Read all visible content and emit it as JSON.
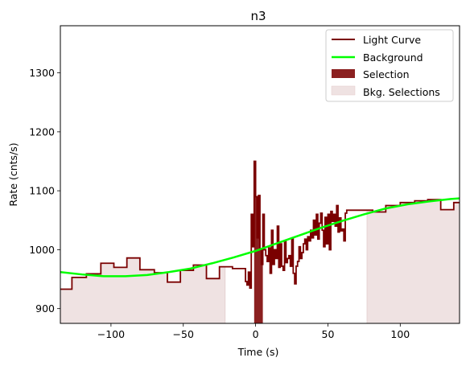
{
  "chart_data": {
    "type": "line",
    "title": "n3",
    "xlabel": "Time (s)",
    "ylabel": "Rate (cnts/s)",
    "xlim": [
      -135,
      141
    ],
    "ylim": [
      875,
      1380
    ],
    "xticks": [
      -100,
      -50,
      0,
      50,
      100
    ],
    "yticks": [
      900,
      1000,
      1100,
      1200,
      1300
    ],
    "legend": {
      "position": "top-right",
      "entries": [
        "Light Curve",
        "Background",
        "Selection",
        "Bkg. Selections"
      ]
    },
    "colors": {
      "light_curve": "#7a0000",
      "background": "#00ff00",
      "selection": "#8b2020",
      "bkg_selection": "#efe2e2"
    },
    "bkg_selections": [
      [
        -135,
        -21
      ],
      [
        77,
        141
      ]
    ],
    "selection": [
      -1,
      5
    ],
    "light_curve_steps": [
      [
        -135,
        933
      ],
      [
        -127,
        953
      ],
      [
        -117,
        959
      ],
      [
        -107,
        977
      ],
      [
        -98,
        970
      ],
      [
        -89,
        986
      ],
      [
        -80,
        966
      ],
      [
        -70,
        961
      ],
      [
        -61,
        945
      ],
      [
        -52,
        965
      ],
      [
        -43,
        974
      ],
      [
        -34,
        951
      ],
      [
        -25,
        971
      ],
      [
        -16,
        968
      ],
      [
        -8,
        968
      ],
      [
        -7,
        946
      ],
      [
        -6,
        940
      ],
      [
        -5,
        962
      ],
      [
        -4,
        935
      ],
      [
        -3,
        1060
      ],
      [
        -2,
        1005
      ],
      [
        -1,
        1150
      ],
      [
        0,
        1090
      ],
      [
        1,
        1020
      ],
      [
        2,
        1092
      ],
      [
        3,
        1000
      ],
      [
        4,
        975
      ],
      [
        5,
        1060
      ],
      [
        6,
        1000
      ],
      [
        7,
        990
      ],
      [
        8,
        980
      ],
      [
        9,
        1003
      ],
      [
        10,
        960
      ],
      [
        11,
        1033
      ],
      [
        12,
        975
      ],
      [
        13,
        1000
      ],
      [
        14,
        985
      ],
      [
        15,
        1040
      ],
      [
        16,
        970
      ],
      [
        17,
        1010
      ],
      [
        18,
        972
      ],
      [
        19,
        965
      ],
      [
        20,
        1015
      ],
      [
        21,
        978
      ],
      [
        22,
        985
      ],
      [
        23,
        990
      ],
      [
        24,
        972
      ],
      [
        25,
        1020
      ],
      [
        26,
        960
      ],
      [
        27,
        942
      ],
      [
        28,
        972
      ],
      [
        29,
        980
      ],
      [
        30,
        1005
      ],
      [
        31,
        985
      ],
      [
        32,
        995
      ],
      [
        33,
        1010
      ],
      [
        34,
        1018
      ],
      [
        35,
        1000
      ],
      [
        36,
        1022
      ],
      [
        37,
        1015
      ],
      [
        38,
        1033
      ],
      [
        39,
        1020
      ],
      [
        40,
        1050
      ],
      [
        41,
        1025
      ],
      [
        42,
        1060
      ],
      [
        43,
        1018
      ],
      [
        44,
        1045
      ],
      [
        45,
        1062
      ],
      [
        46,
        1033
      ],
      [
        47,
        1005
      ],
      [
        48,
        1055
      ],
      [
        49,
        1010
      ],
      [
        50,
        1060
      ],
      [
        51,
        1000
      ],
      [
        52,
        1065
      ],
      [
        53,
        1048
      ],
      [
        54,
        1060
      ],
      [
        55,
        1040
      ],
      [
        56,
        1075
      ],
      [
        57,
        1030
      ],
      [
        58,
        1054
      ],
      [
        59,
        1032
      ],
      [
        60,
        1035
      ],
      [
        61,
        1015
      ],
      [
        62,
        1062
      ],
      [
        63,
        1067
      ],
      [
        64,
        1067
      ],
      [
        72,
        1067
      ],
      [
        81,
        1064
      ],
      [
        90,
        1075
      ],
      [
        100,
        1080
      ],
      [
        110,
        1083
      ],
      [
        119,
        1085
      ],
      [
        128,
        1068
      ],
      [
        137,
        1080
      ],
      [
        146,
        1070
      ]
    ],
    "light_curve_end": 141,
    "background_points": [
      [
        -135,
        962
      ],
      [
        -120,
        958
      ],
      [
        -105,
        955
      ],
      [
        -90,
        955
      ],
      [
        -75,
        957
      ],
      [
        -60,
        962
      ],
      [
        -45,
        968
      ],
      [
        -30,
        977
      ],
      [
        -15,
        987
      ],
      [
        0,
        998
      ],
      [
        15,
        1011
      ],
      [
        30,
        1024
      ],
      [
        45,
        1037
      ],
      [
        60,
        1049
      ],
      [
        75,
        1060
      ],
      [
        90,
        1070
      ],
      [
        105,
        1077
      ],
      [
        120,
        1082
      ],
      [
        135,
        1086
      ],
      [
        141,
        1087
      ]
    ]
  }
}
